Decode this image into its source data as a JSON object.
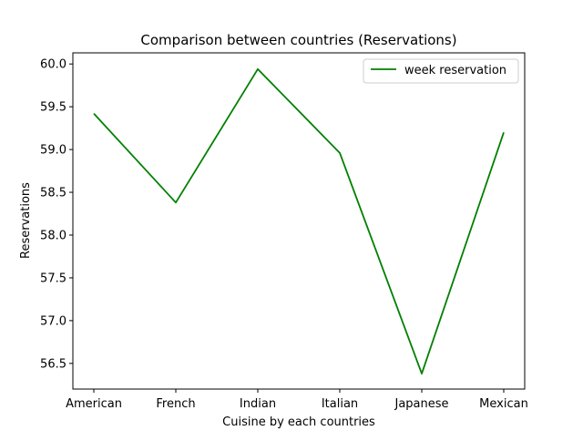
{
  "chart_data": {
    "type": "line",
    "title": "Comparison between countries (Reservations)",
    "xlabel": "Cuisine by each countries",
    "ylabel": "Reservations",
    "categories": [
      "American",
      "French",
      "Indian",
      "Italian",
      "Japanese",
      "Mexican"
    ],
    "series": [
      {
        "name": "week reservation",
        "color": "#008000",
        "values": [
          59.42,
          58.38,
          59.94,
          58.96,
          56.38,
          59.2
        ]
      }
    ],
    "ylim": [
      56.2,
      60.13
    ],
    "yticks": [
      "56.5",
      "57.0",
      "57.5",
      "58.0",
      "58.5",
      "59.0",
      "59.5",
      "60.0"
    ],
    "ytick_values": [
      56.5,
      57.0,
      57.5,
      58.0,
      58.5,
      59.0,
      59.5,
      60.0
    ],
    "grid": false,
    "legend_position": "top-right"
  }
}
